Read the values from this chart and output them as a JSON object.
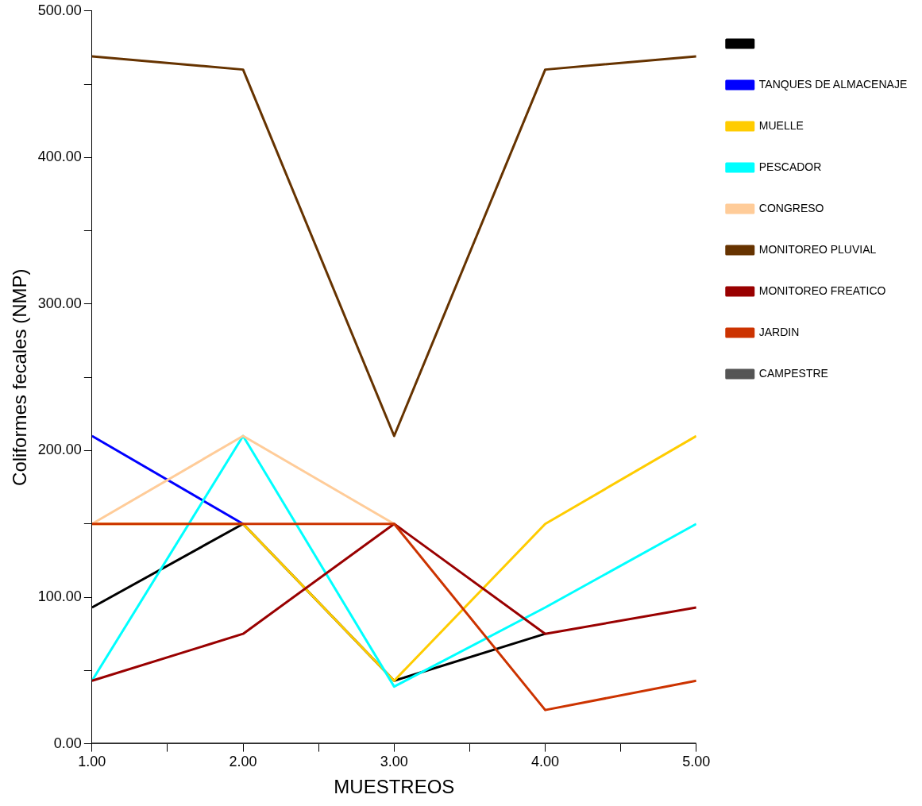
{
  "chart_data": {
    "type": "line",
    "xlabel": "MUESTREOS",
    "ylabel": "Coliformes fecales (NMP)",
    "x": [
      1,
      2,
      3,
      4,
      5
    ],
    "xlim": [
      1,
      5
    ],
    "xticks": [
      {
        "value": 1,
        "label": "1.00"
      },
      {
        "value": 1.5,
        "label": null
      },
      {
        "value": 2,
        "label": "2.00"
      },
      {
        "value": 2.5,
        "label": null
      },
      {
        "value": 3,
        "label": "3.00"
      },
      {
        "value": 3.5,
        "label": null
      },
      {
        "value": 4,
        "label": "4.00"
      },
      {
        "value": 4.5,
        "label": null
      },
      {
        "value": 5,
        "label": "5.00"
      }
    ],
    "ylim": [
      0,
      500
    ],
    "yticks": [
      {
        "value": 0,
        "label": "0.00"
      },
      {
        "value": 50,
        "label": null
      },
      {
        "value": 100,
        "label": "100.00"
      },
      {
        "value": 150,
        "label": null
      },
      {
        "value": 200,
        "label": "200.00"
      },
      {
        "value": 250,
        "label": null
      },
      {
        "value": 300,
        "label": "300.00"
      },
      {
        "value": 350,
        "label": null
      },
      {
        "value": 400,
        "label": "400.00"
      },
      {
        "value": 450,
        "label": null
      },
      {
        "value": 500,
        "label": "500.00"
      }
    ],
    "grid": false,
    "legend": "right",
    "marker": "none",
    "line_style": "solid",
    "series": [
      {
        "color": "#000000",
        "values": [
          93,
          150,
          43,
          75,
          null
        ]
      },
      {
        "name": "TANQUES DE ALMACENAJE",
        "color": "#0000ff",
        "values": [
          210,
          150,
          null,
          null,
          null
        ]
      },
      {
        "name": "MUELLE",
        "color": "#ffcc00",
        "values": [
          150,
          150,
          43,
          150,
          210
        ]
      },
      {
        "name": "PESCADOR",
        "color": "#00ffff",
        "values": [
          43,
          210,
          39,
          93,
          150
        ]
      },
      {
        "name": "CONGRESO",
        "color": "#ffcc99",
        "values": [
          150,
          210,
          150,
          null,
          null
        ]
      },
      {
        "name": "MONITOREO PLUVIAL",
        "color": "#663300",
        "values": [
          469,
          460,
          210,
          460,
          469
        ]
      },
      {
        "name": "MONITOREO FREATICO",
        "color": "#990000",
        "values": [
          43,
          75,
          150,
          75,
          93
        ]
      },
      {
        "name": "JARDIN",
        "color": "#cc3300",
        "values": [
          150,
          150,
          150,
          23,
          43
        ]
      },
      {
        "name": "CAMPESTRE",
        "color": "#555555",
        "values": [
          0,
          0,
          0,
          0,
          0
        ]
      }
    ]
  }
}
